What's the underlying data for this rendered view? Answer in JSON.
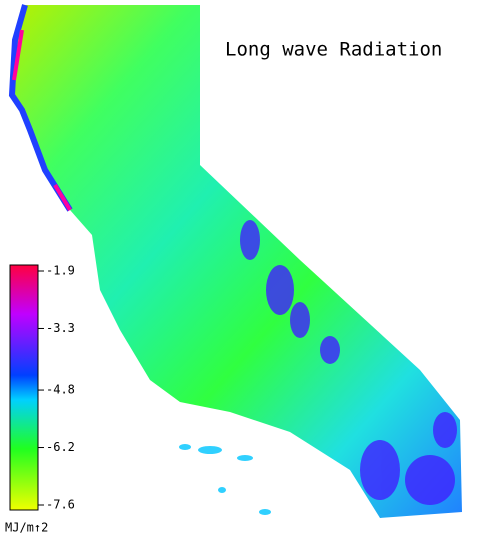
{
  "title": "Long wave Radiation",
  "colorbar": {
    "lim": [
      -1.9,
      -7.6
    ],
    "ticks": [
      -1.9,
      -3.3,
      -4.8,
      -6.2,
      -7.6
    ],
    "unit": "MJ/m↑2"
  }
}
